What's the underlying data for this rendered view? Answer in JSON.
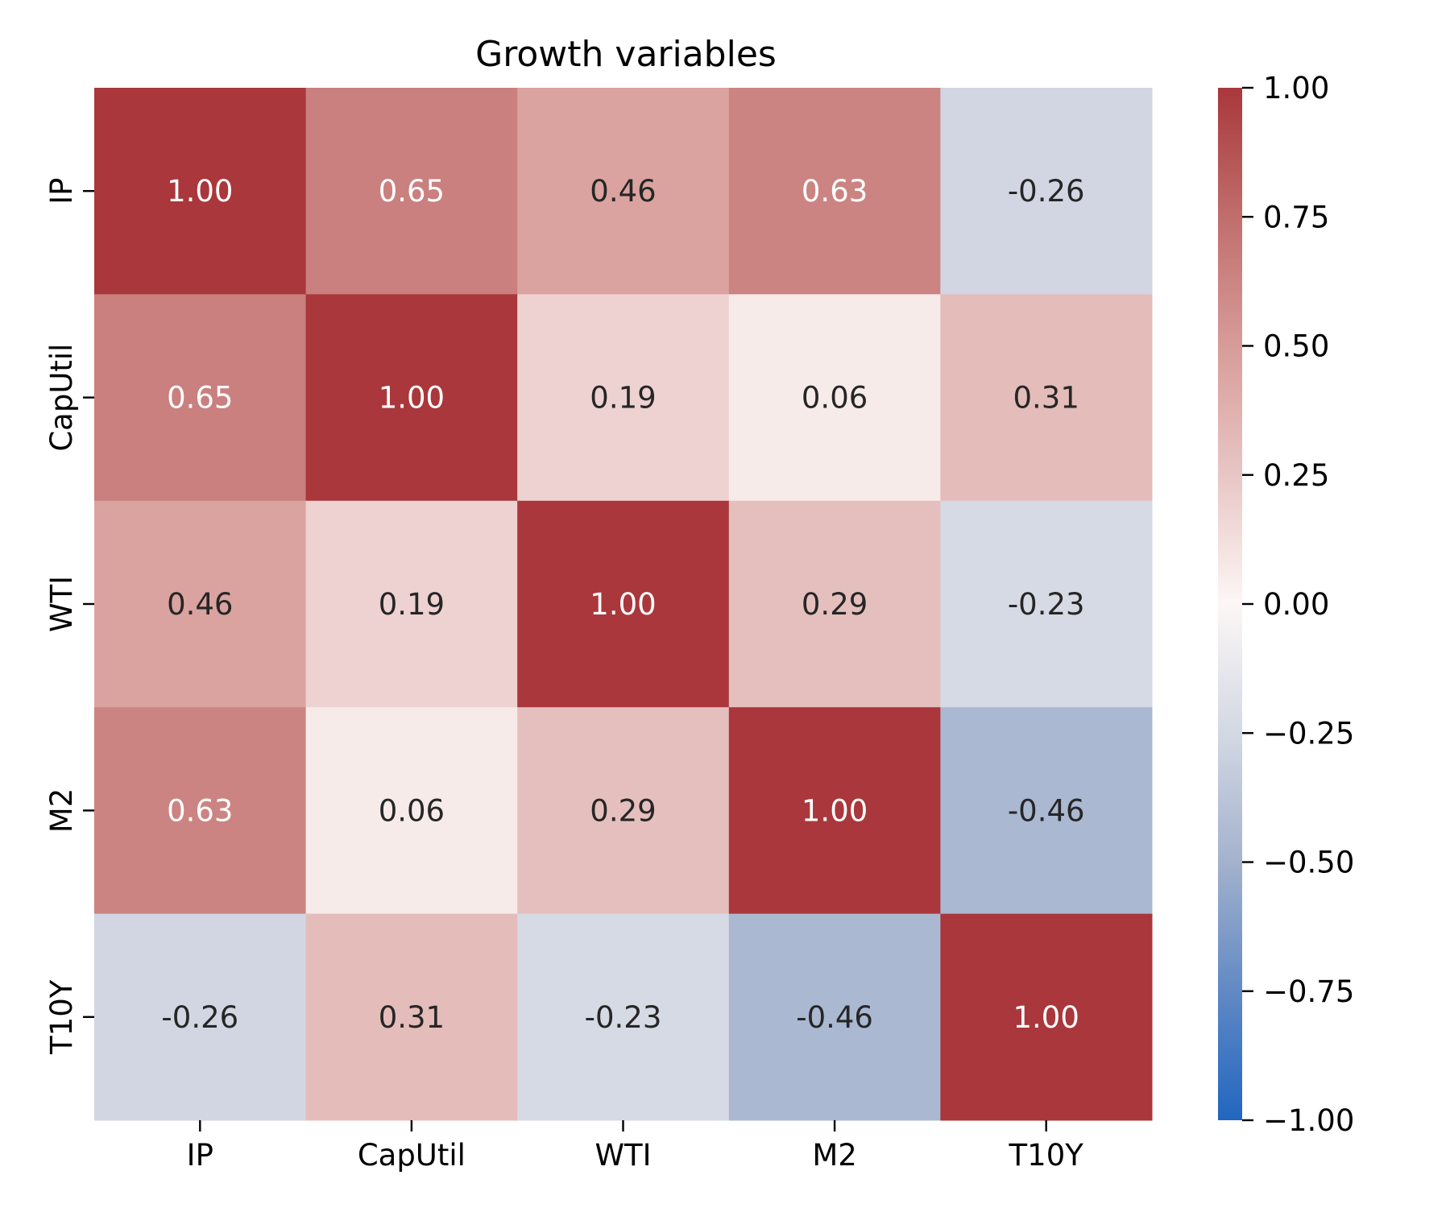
{
  "chart_data": {
    "type": "heatmap",
    "title": "Growth variables",
    "x_labels": [
      "IP",
      "CapUtil",
      "WTI",
      "M2",
      "T10Y"
    ],
    "y_labels": [
      "IP",
      "CapUtil",
      "WTI",
      "M2",
      "T10Y"
    ],
    "values": [
      [
        1.0,
        0.65,
        0.46,
        0.63,
        -0.26
      ],
      [
        0.65,
        1.0,
        0.19,
        0.06,
        0.31
      ],
      [
        0.46,
        0.19,
        1.0,
        0.29,
        -0.23
      ],
      [
        0.63,
        0.06,
        0.29,
        1.0,
        -0.46
      ],
      [
        -0.26,
        0.31,
        -0.23,
        -0.46,
        1.0
      ]
    ],
    "cell_labels": [
      [
        "1.00",
        "0.65",
        "0.46",
        "0.63",
        "-0.26"
      ],
      [
        "0.65",
        "1.00",
        "0.19",
        "0.06",
        "0.31"
      ],
      [
        "0.46",
        "0.19",
        "1.00",
        "0.29",
        "-0.23"
      ],
      [
        "0.63",
        "0.06",
        "0.29",
        "1.00",
        "-0.46"
      ],
      [
        "-0.26",
        "0.31",
        "-0.23",
        "-0.46",
        "1.00"
      ]
    ],
    "colorbar": {
      "vmin": -1.0,
      "vmax": 1.0,
      "ticks": [
        1.0,
        0.75,
        0.5,
        0.25,
        0.0,
        -0.25,
        -0.5,
        -0.75,
        -1.0
      ],
      "tick_labels": [
        "1.00",
        "0.75",
        "0.50",
        "0.25",
        "0.00",
        "−0.25",
        "−0.50",
        "−0.75",
        "−1.00"
      ]
    },
    "colormap": {
      "name": "vlag",
      "stops": [
        {
          "v": -1.0,
          "color": "#2166c0"
        },
        {
          "v": -0.75,
          "color": "#6189c4"
        },
        {
          "v": -0.5,
          "color": "#a3b2cd"
        },
        {
          "v": -0.25,
          "color": "#d3d8e3"
        },
        {
          "v": 0.0,
          "color": "#fcf7f6"
        },
        {
          "v": 0.25,
          "color": "#e8c6c5"
        },
        {
          "v": 0.5,
          "color": "#d79c99"
        },
        {
          "v": 0.75,
          "color": "#c06e6c"
        },
        {
          "v": 1.0,
          "color": "#a9373b"
        }
      ]
    },
    "text_colors": {
      "light": "#ffffff",
      "dark": "#262626"
    },
    "grid": false,
    "legend": "colorbar-right"
  }
}
